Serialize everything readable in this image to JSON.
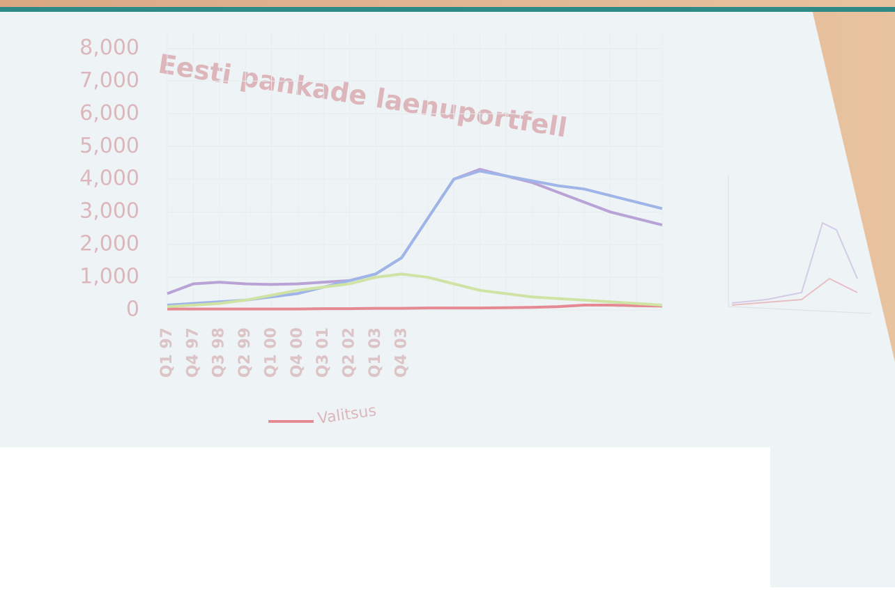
{
  "chart_data": {
    "type": "line",
    "title": "Eesti pankade laenuportfell",
    "categories": [
      "Q1 97",
      "Q4 97",
      "Q3 98",
      "Q2 99",
      "Q1 00",
      "Q4 00",
      "Q3 01",
      "Q2 02",
      "Q1 03",
      "Q4 03",
      null,
      null,
      null,
      null,
      null,
      null,
      null,
      null,
      null,
      null
    ],
    "series": [
      {
        "name": "Valitsus",
        "color": "#e58a92",
        "values": [
          30,
          30,
          30,
          30,
          30,
          30,
          40,
          40,
          50,
          50,
          60,
          60,
          60,
          70,
          80,
          100,
          150,
          150,
          130,
          120
        ]
      },
      {
        "color": "#b9a3d6",
        "values": [
          500,
          800,
          850,
          800,
          780,
          800,
          850,
          900,
          1100,
          1600,
          2800,
          4000,
          4300,
          4100,
          3900,
          3600,
          3300,
          3000,
          2800,
          2600
        ]
      },
      {
        "color": "#9fb5e8",
        "values": [
          150,
          200,
          250,
          300,
          400,
          500,
          700,
          900,
          1100,
          1600,
          2800,
          4000,
          4250,
          4100,
          3950,
          3800,
          3700,
          3500,
          3300,
          3100
        ]
      },
      {
        "color": "#cfe3a4",
        "values": [
          100,
          150,
          200,
          300,
          450,
          600,
          700,
          800,
          1000,
          1100,
          1000,
          800,
          600,
          500,
          400,
          350,
          300,
          250,
          200,
          150
        ]
      }
    ],
    "ylim": [
      0,
      8500
    ],
    "yticks": [
      0,
      {
        "value": 1000,
        "label": "1,000"
      },
      {
        "value": 2000,
        "label": "2,000"
      },
      {
        "value": 3000,
        "label": "3,000"
      },
      {
        "value": 4000,
        "label": "4,000"
      },
      {
        "value": 5000,
        "label": "5,000"
      },
      {
        "value": 6000,
        "label": "6,000"
      },
      {
        "value": 7000,
        "label": "7,000"
      },
      {
        "value": 8000,
        "label": "8,000"
      }
    ],
    "grid": true
  }
}
